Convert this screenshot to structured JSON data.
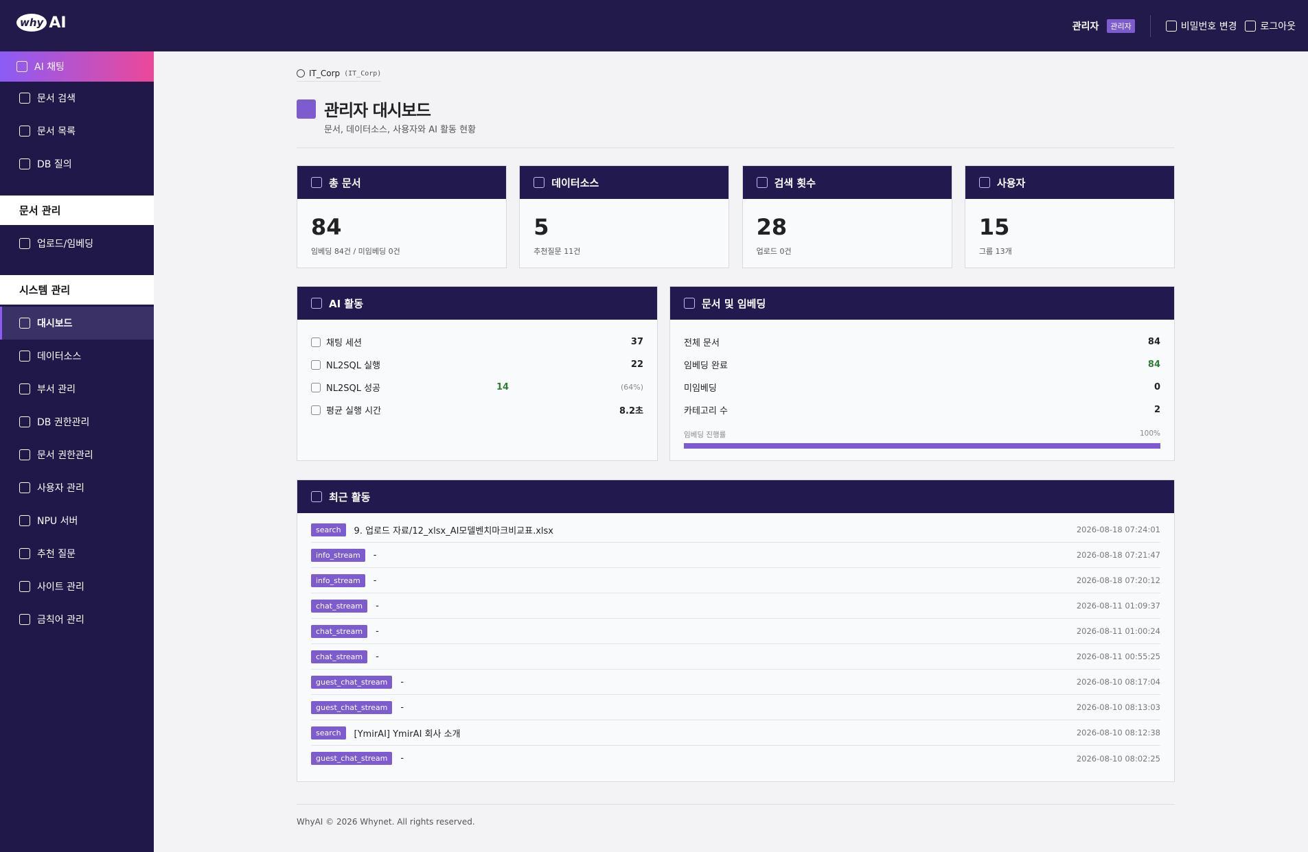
{
  "header": {
    "logo_mark": "why",
    "logo_text": "AI",
    "user": "관리자",
    "role_badge": "관리자",
    "change_password": "비밀번호 변경",
    "logout": "로그아웃"
  },
  "sidebar": {
    "top_items": [
      "AI 채팅",
      "문서 검색",
      "문서 목록",
      "DB 질의"
    ],
    "sections": [
      {
        "title": "문서 관리",
        "items": [
          "업로드/임베딩"
        ]
      },
      {
        "title": "시스템 관리",
        "items": [
          "대시보드",
          "데이터소스",
          "부서 관리",
          "DB 권한관리",
          "문서 권한관리",
          "사용자 관리",
          "NPU 서버",
          "추천 질문",
          "사이트 관리",
          "금칙어 관리"
        ]
      }
    ]
  },
  "breadcrumb": {
    "site": "IT_Corp",
    "code": "(IT_Corp)"
  },
  "page": {
    "title": "관리자 대시보드",
    "subtitle": "문서, 데이터소스, 사용자와 AI 활동 현황"
  },
  "stats": [
    {
      "title": "총 문서",
      "value": "84",
      "note": "임베딩 84건 / 미임베딩 0건"
    },
    {
      "title": "데이터소스",
      "value": "5",
      "note": "추천질문 11건"
    },
    {
      "title": "검색 횟수",
      "value": "28",
      "note": "업로드 0건"
    },
    {
      "title": "사용자",
      "value": "15",
      "note": "그룹 13개"
    }
  ],
  "ai_activity": {
    "title": "AI 활동",
    "rows": [
      {
        "label": "채팅 세션",
        "value": "37"
      },
      {
        "label": "NL2SQL 실행",
        "value": "22"
      },
      {
        "label": "NL2SQL 성공",
        "value": "14",
        "note": "(64%)",
        "color": "#2e7d32"
      },
      {
        "label": "평균 실행 시간",
        "value": "8.2초"
      }
    ]
  },
  "documents": {
    "title": "문서 및 임베딩",
    "rows": [
      {
        "label": "전체 문서",
        "value": "84"
      },
      {
        "label": "임베딩 완료",
        "value": "84",
        "color": "#2e7d32"
      },
      {
        "label": "미임베딩",
        "value": "0"
      },
      {
        "label": "카테고리 수",
        "value": "2"
      }
    ],
    "progress": {
      "label": "임베딩 진행률",
      "value": "100%"
    }
  },
  "recent": {
    "title": "최근 활동",
    "rows": [
      {
        "tag": "search",
        "text": "9. 업로드 자료/12_xlsx_AI모델벤치마크비교표.xlsx",
        "time": "2026-08-18 07:24:01"
      },
      {
        "tag": "info_stream",
        "text": "-",
        "time": "2026-08-18 07:21:47"
      },
      {
        "tag": "info_stream",
        "text": "-",
        "time": "2026-08-18 07:20:12"
      },
      {
        "tag": "chat_stream",
        "text": "-",
        "time": "2026-08-11 01:09:37"
      },
      {
        "tag": "chat_stream",
        "text": "-",
        "time": "2026-08-11 01:00:24"
      },
      {
        "tag": "chat_stream",
        "text": "-",
        "time": "2026-08-11 00:55:25"
      },
      {
        "tag": "guest_chat_stream",
        "text": "-",
        "time": "2026-08-10 08:17:04"
      },
      {
        "tag": "guest_chat_stream",
        "text": "-",
        "time": "2026-08-10 08:13:03"
      },
      {
        "tag": "search",
        "text": "[YmirAI] YmirAI 회사 소개",
        "time": "2026-08-10 08:12:38"
      },
      {
        "tag": "guest_chat_stream",
        "text": "-",
        "time": "2026-08-10 08:02:25"
      }
    ]
  },
  "footer": "WhyAI © 2026 Whynet. All rights reserved."
}
